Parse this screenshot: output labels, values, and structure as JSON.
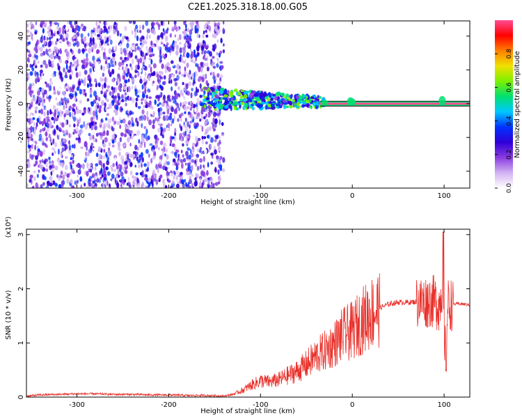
{
  "title": "C2E1.2025.318.18.00.G05",
  "chart_data": [
    {
      "type": "heatmap",
      "xlabel": "Height of straight line (km)",
      "ylabel": "Frequency (Hz)",
      "xlim": [
        -355,
        128
      ],
      "ylim": [
        -50,
        49
      ],
      "x_ticks": [
        -300,
        -200,
        -100,
        0,
        100
      ],
      "x_tick_labels": [
        "-300",
        "-200",
        "-100",
        "0",
        "100"
      ],
      "y_ticks": [
        -40,
        -20,
        0,
        20,
        40
      ],
      "y_tick_labels": [
        "-40",
        "-20",
        "0",
        "20",
        "40"
      ],
      "grid": false,
      "colorbar": {
        "label": "Normalized spectral amplitude",
        "range": [
          0,
          1
        ],
        "ticks": [
          0,
          0.2,
          0.4,
          0.6,
          0.8
        ],
        "tick_labels": [
          "0.0",
          "0.2",
          "0.4",
          "0.6",
          "0.8"
        ],
        "colors": [
          "#ffffff",
          "#d2b2f2",
          "#8a3be0",
          "#2f00d8",
          "#0032ff",
          "#00c8ff",
          "#00e070",
          "#7cf000",
          "#f0e000",
          "#ff8000",
          "#ff0000",
          "#ff4d94"
        ]
      },
      "features": [
        {
          "name": "noise region",
          "x_range": [
            -355,
            -140
          ],
          "freq_range": [
            -50,
            49
          ],
          "amplitude": 0.15
        },
        {
          "name": "signal band",
          "x_range": [
            -165,
            -30
          ],
          "freq_range": [
            -6,
            10
          ],
          "amplitude": 0.35
        },
        {
          "name": "carrier line",
          "x_range": [
            -35,
            128
          ],
          "frequency": 0,
          "amplitude": 0.97
        }
      ]
    },
    {
      "type": "line",
      "xlabel": "Height of straight line (km)",
      "ylabel": "SNR (10 * v/v)",
      "y_multiplier": "(x10⁴)",
      "xlim": [
        -355,
        128
      ],
      "ylim": [
        0,
        3.1
      ],
      "x_ticks": [
        -300,
        -200,
        -100,
        0,
        100
      ],
      "x_tick_labels": [
        "-300",
        "-200",
        "-100",
        "0",
        "100"
      ],
      "y_ticks": [
        0,
        1,
        2,
        3
      ],
      "y_tick_labels": [
        "0",
        "1",
        "2",
        "3"
      ],
      "color": "#e8302a",
      "grid": false,
      "series": [
        {
          "x": [
            -355,
            -340,
            -320,
            -300,
            -280,
            -260,
            -240,
            -220,
            -200,
            -180,
            -160,
            -140,
            -130,
            -120,
            -110,
            -100,
            -90,
            -80,
            -70,
            -60,
            -50,
            -40,
            -30,
            -20,
            -10,
            0,
            10,
            20,
            30,
            40,
            50,
            60,
            70,
            80,
            85,
            90,
            95,
            98,
            100,
            102,
            104,
            110,
            120,
            128
          ],
          "y": [
            0.02,
            0.04,
            0.05,
            0.06,
            0.06,
            0.05,
            0.05,
            0.04,
            0.04,
            0.03,
            0.03,
            0.02,
            0.05,
            0.12,
            0.22,
            0.3,
            0.28,
            0.32,
            0.4,
            0.48,
            0.6,
            0.75,
            0.85,
            0.98,
            1.15,
            1.22,
            1.4,
            1.55,
            1.65,
            1.72,
            1.75,
            1.75,
            1.76,
            1.76,
            1.78,
            1.75,
            1.7,
            1.9,
            1.3,
            0.6,
            1.7,
            1.72,
            1.72,
            1.7
          ]
        }
      ]
    }
  ]
}
